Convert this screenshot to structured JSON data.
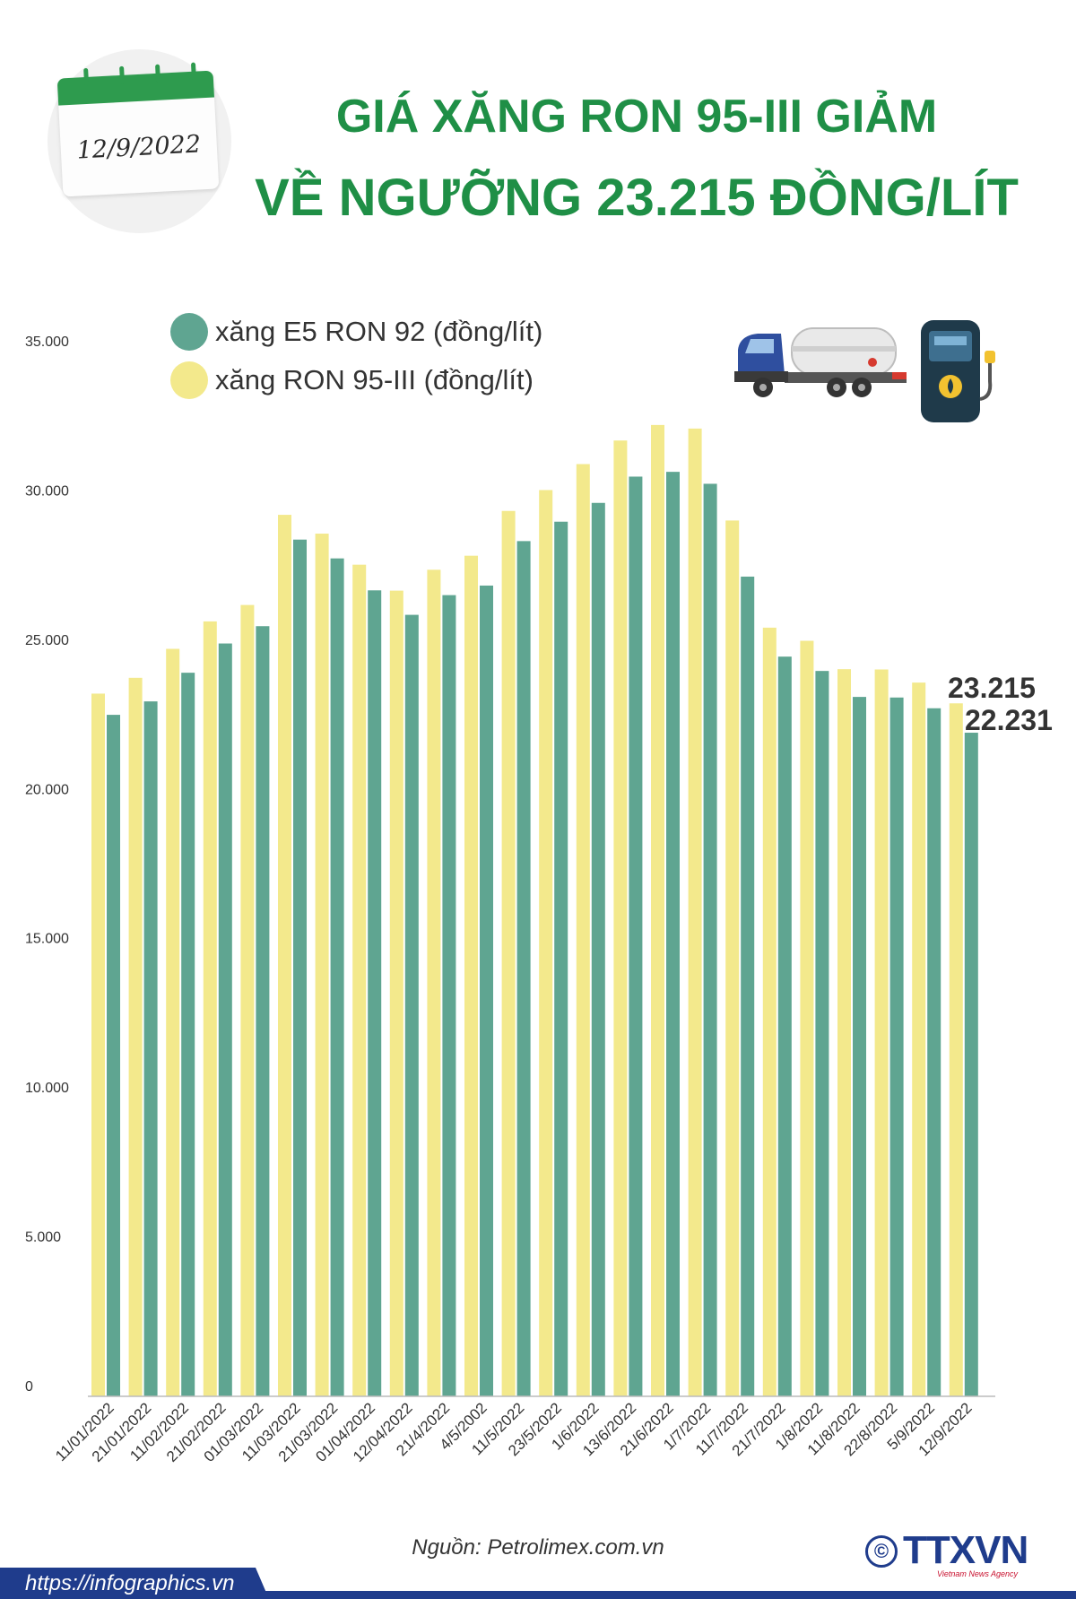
{
  "header": {
    "date": "12/9/2022",
    "title_line1": "GIÁ XĂNG RON 95-III GIẢM",
    "title_line2": "VỀ NGƯỠNG 23.215 ĐỒNG/LÍT"
  },
  "icons": [
    "calendar-icon",
    "fuel-truck-icon",
    "fuel-pump-icon"
  ],
  "colors": {
    "title": "#1f8f46",
    "e5": "#5fa591",
    "ron95": "#f3e98c",
    "brand": "#1f3c8c"
  },
  "chart_data": {
    "type": "bar",
    "categories": [
      "11/01/2022",
      "21/01/2022",
      "11/02/2022",
      "21/02/2022",
      "01/03/2022",
      "11/03/2022",
      "21/03/2022",
      "01/04/2022",
      "12/04/2022",
      "21/4/2022",
      "4/5/2002",
      "11/5/2022",
      "23/5/2022",
      "1/6/2022",
      "13/6/2022",
      "21/6/2022",
      "1/7/2022",
      "11/7/2022",
      "21/7/2022",
      "1/8/2022",
      "11/8/2022",
      "22/8/2022",
      "5/9/2022",
      "12/9/2022"
    ],
    "series": [
      {
        "name": "xăng E5 RON 92 (đồng/lít)",
        "color": "#5fa591",
        "values": [
          22830,
          23280,
          24240,
          25220,
          25800,
          28700,
          28070,
          27000,
          26180,
          26840,
          27160,
          28650,
          29300,
          29930,
          30810,
          30970,
          30570,
          27460,
          24780,
          24300,
          23430,
          23410,
          23050,
          22231
        ]
      },
      {
        "name": "xăng RON 95-III (đồng/lít)",
        "color": "#f3e98c",
        "values": [
          23540,
          24070,
          25040,
          25960,
          26510,
          29530,
          28900,
          27860,
          26990,
          27690,
          28160,
          29660,
          30360,
          31230,
          32020,
          32540,
          32420,
          29340,
          25750,
          25310,
          24360,
          24350,
          23910,
          23215
        ]
      }
    ],
    "yticks": [
      "0",
      "5.000",
      "10.000",
      "15.000",
      "20.000",
      "25.000",
      "30.000",
      "35.000"
    ],
    "ylim": [
      0,
      35000
    ],
    "data_labels": [
      "23.215",
      "22.231"
    ],
    "legend_position": "top-left"
  },
  "footer": {
    "source": "Nguồn: Petrolimex.com.vn",
    "url": "https://infographics.vn",
    "logo_text": "TTXVN",
    "logo_sub": "Vietnam News Agency",
    "copyright": "©"
  }
}
